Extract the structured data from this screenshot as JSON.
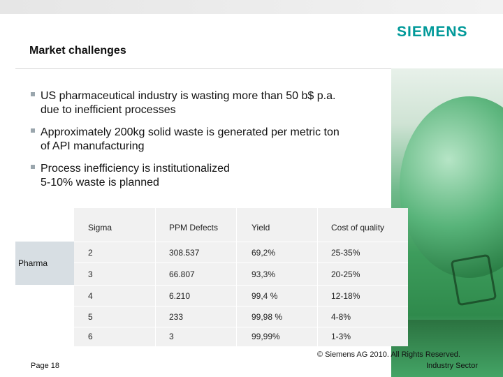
{
  "header": {
    "title": "Market challenges",
    "brand": "SIEMENS",
    "brand_color": "#009999"
  },
  "bullets": [
    {
      "lines": [
        "US pharmaceutical industry is wasting more than 50 b$ p.a.",
        "due to inefficient processes"
      ]
    },
    {
      "lines": [
        "Approximately 200kg solid waste is generated per metric ton",
        "of API manufacturing"
      ]
    },
    {
      "lines": [
        "Process inefficiency is institutionalized",
        "5-10% waste is planned"
      ]
    }
  ],
  "table": {
    "row_label": "Pharma",
    "headers": [
      "Sigma",
      "PPM Defects",
      "Yield",
      "Cost of quality"
    ],
    "rows": [
      [
        "2",
        "308.537",
        "69,2%",
        "25-35%"
      ],
      [
        "3",
        "66.807",
        "93,3%",
        "20-25%"
      ],
      [
        "4",
        "6.210",
        "99,4 %",
        "12-18%"
      ],
      [
        "5",
        "233",
        "99,98 %",
        "4-8%"
      ],
      [
        "6",
        "3",
        "99,99%",
        "1-3%"
      ]
    ]
  },
  "footer": {
    "page": "Page 18",
    "copyright": "© Siemens AG 2010. All Rights Reserved.",
    "sector": "Industry Sector"
  }
}
